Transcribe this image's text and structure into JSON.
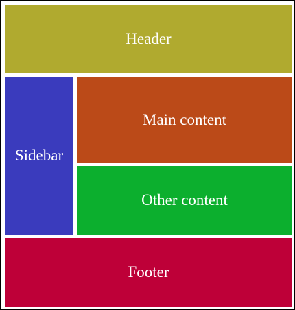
{
  "regions": {
    "header": {
      "label": "Header",
      "color": "#b0aa2f"
    },
    "sidebar": {
      "label": "Sidebar",
      "color": "#3a3bbd"
    },
    "main": {
      "label": "Main content",
      "color": "#bb4a18"
    },
    "other": {
      "label": "Other content",
      "color": "#0caf2e"
    },
    "footer": {
      "label": "Footer",
      "color": "#be0038"
    }
  }
}
